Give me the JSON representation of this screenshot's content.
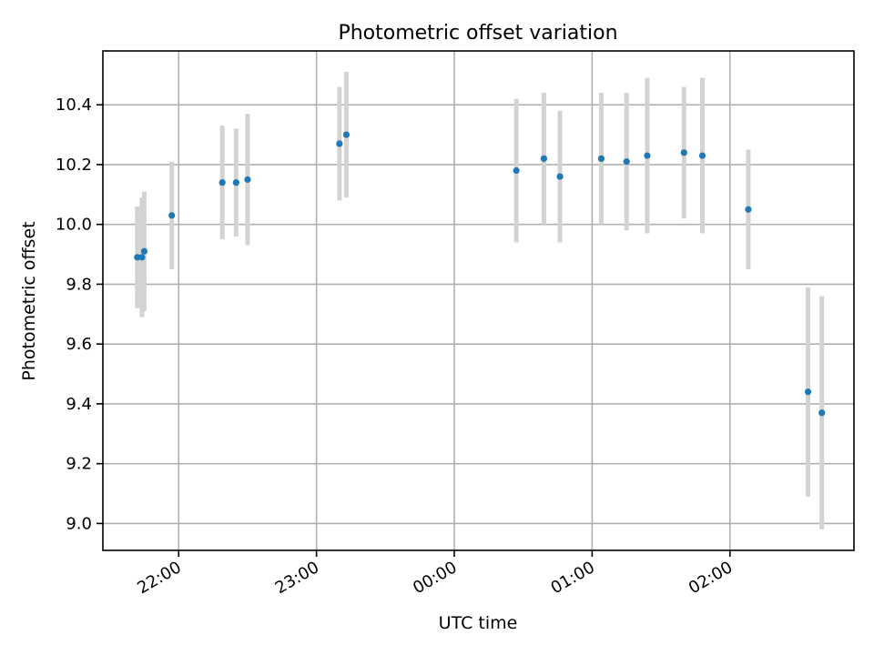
{
  "chart_data": {
    "type": "scatter",
    "title": "Photometric offset variation",
    "xlabel": "UTC time",
    "ylabel": "Photometric offset",
    "xlim": [
      "21:27",
      "02:54"
    ],
    "ylim": [
      8.91,
      10.58
    ],
    "x_ticks": [
      "22:00",
      "23:00",
      "00:00",
      "01:00",
      "02:00"
    ],
    "y_ticks": [
      "9.0",
      "9.2",
      "9.4",
      "9.6",
      "9.8",
      "10.0",
      "10.2",
      "10.4"
    ],
    "grid": true,
    "colors": {
      "point": "#1f77b4",
      "errorbar": "#d3d3d3",
      "grid": "#b0b0b0"
    },
    "series": [
      {
        "x": [
          "21:42",
          "21:44",
          "21:45",
          "21:57",
          "22:19",
          "22:25",
          "22:30",
          "23:10",
          "23:13",
          "00:27",
          "00:39",
          "00:46",
          "01:04",
          "01:15",
          "01:24",
          "01:40",
          "01:48",
          "02:08",
          "02:34",
          "02:40"
        ],
        "y": [
          9.89,
          9.89,
          9.91,
          10.03,
          10.14,
          10.14,
          10.15,
          10.27,
          10.3,
          10.18,
          10.22,
          10.16,
          10.22,
          10.21,
          10.23,
          10.24,
          10.23,
          10.05,
          9.44,
          9.37
        ],
        "yerr": [
          0.17,
          0.2,
          0.2,
          0.18,
          0.19,
          0.18,
          0.22,
          0.19,
          0.21,
          0.24,
          0.22,
          0.22,
          0.22,
          0.23,
          0.26,
          0.22,
          0.26,
          0.2,
          0.35,
          0.39
        ]
      }
    ]
  }
}
